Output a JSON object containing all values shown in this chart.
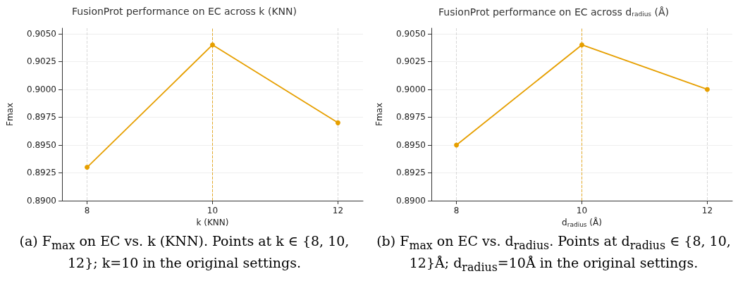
{
  "chart_data": [
    {
      "type": "line",
      "title": "FusionProt performance on EC across k (KNN)",
      "xlabel": "k (KNN)",
      "ylabel": "Fmax",
      "x": [
        8,
        10,
        12
      ],
      "series": [
        {
          "color": "#e69f00",
          "values": [
            0.893,
            0.904,
            0.897
          ]
        }
      ],
      "xlim": [
        7.6,
        12.4
      ],
      "xticks": [
        8,
        10,
        12
      ],
      "ylim": [
        0.89,
        0.9055
      ],
      "yticks": [
        {
          "value": 0.89,
          "label": "0.8900"
        },
        {
          "value": 0.8925,
          "label": "0.8925"
        },
        {
          "value": 0.895,
          "label": "0.8950"
        },
        {
          "value": 0.8975,
          "label": "0.8975"
        },
        {
          "value": 0.9,
          "label": "0.9000"
        },
        {
          "value": 0.9025,
          "label": "0.9025"
        },
        {
          "value": 0.905,
          "label": "0.9050"
        }
      ],
      "grid": true,
      "marker": "circle",
      "line_style": "solid",
      "ref_lines": [
        {
          "axis": "x",
          "value": 10,
          "color": "#e69f00",
          "line_style": "dashed"
        }
      ],
      "annotations": [
        "(a) F$_{max}$ on EC vs. k (KNN). Points at k ∈ {8, 10, 12}; k=10 in the original settings."
      ]
    },
    {
      "type": "line",
      "title": "FusionProt performance on EC across d$_{radius}$ (Å)",
      "xlabel": "d$_{radius}$ (Å)",
      "ylabel": "Fmax",
      "x": [
        8,
        10,
        12
      ],
      "series": [
        {
          "color": "#e69f00",
          "values": [
            0.895,
            0.904,
            0.9
          ]
        }
      ],
      "xlim": [
        7.6,
        12.4
      ],
      "xticks": [
        8,
        10,
        12
      ],
      "ylim": [
        0.89,
        0.9055
      ],
      "yticks": [
        {
          "value": 0.89,
          "label": "0.8900"
        },
        {
          "value": 0.8925,
          "label": "0.8925"
        },
        {
          "value": 0.895,
          "label": "0.8950"
        },
        {
          "value": 0.8975,
          "label": "0.8975"
        },
        {
          "value": 0.9,
          "label": "0.9000"
        },
        {
          "value": 0.9025,
          "label": "0.9025"
        },
        {
          "value": 0.905,
          "label": "0.9050"
        }
      ],
      "grid": true,
      "marker": "circle",
      "line_style": "solid",
      "ref_lines": [
        {
          "axis": "x",
          "value": 10,
          "color": "#e69f00",
          "line_style": "dashed"
        }
      ],
      "annotations": [
        "(b) F$_{max}$ on EC vs. d$_{radius}$. Points at d$_{radius}$ ∈ {8, 10, 12}Å; d$_{radius}$=10Å in the original settings."
      ]
    }
  ]
}
